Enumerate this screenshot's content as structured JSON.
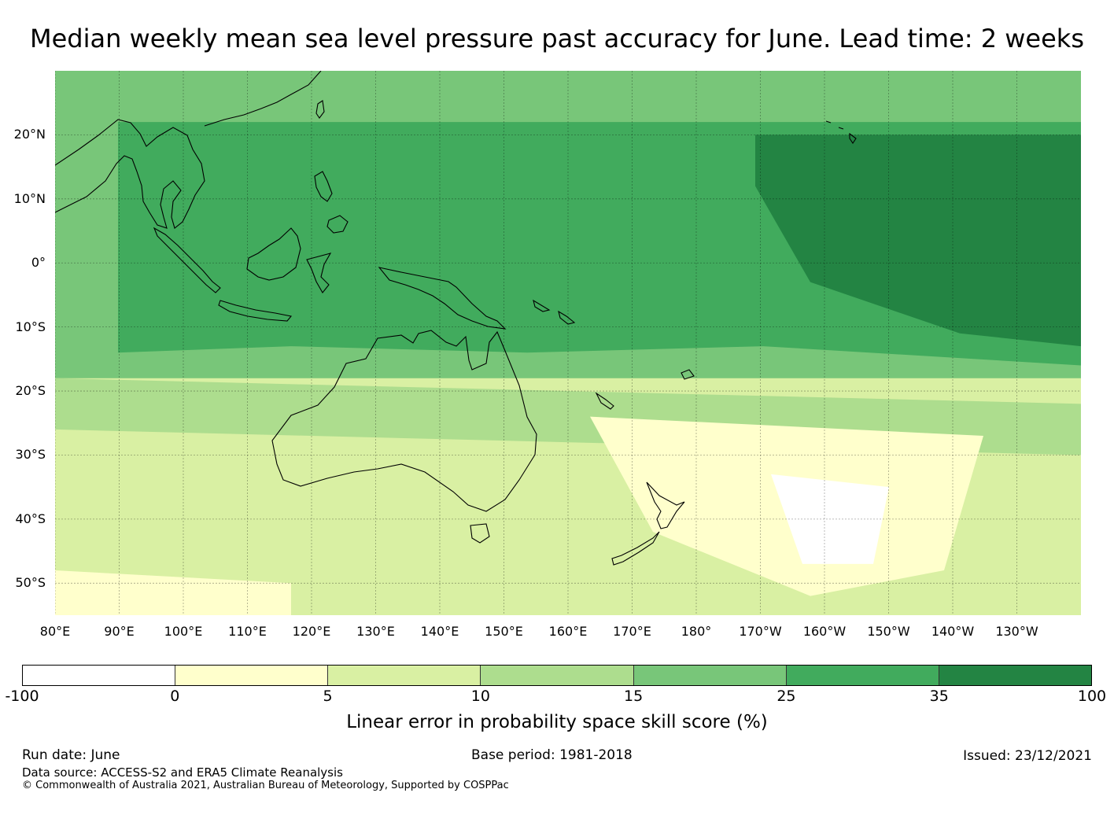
{
  "title": "Median weekly mean sea level pressure past accuracy for June. Lead time: 2 weeks",
  "map": {
    "lon_range": [
      80,
      240
    ],
    "lat_range": [
      -55,
      30
    ],
    "lat_labels": [
      "20°N",
      "10°N",
      "0°",
      "10°S",
      "20°S",
      "30°S",
      "40°S",
      "50°S"
    ],
    "lat_values": [
      20,
      10,
      0,
      -10,
      -20,
      -30,
      -40,
      -50
    ],
    "lon_labels": [
      "80°E",
      "90°E",
      "100°E",
      "110°E",
      "120°E",
      "130°E",
      "140°E",
      "150°E",
      "160°E",
      "170°E",
      "180°",
      "170°W",
      "160°W",
      "150°W",
      "140°W",
      "130°W"
    ],
    "lon_values": [
      80,
      90,
      100,
      110,
      120,
      130,
      140,
      150,
      160,
      170,
      180,
      190,
      200,
      210,
      220,
      230
    ],
    "grid": true,
    "coastline_color": "#000000"
  },
  "colorbar": {
    "ticks": [
      "-100",
      "0",
      "5",
      "10",
      "15",
      "25",
      "35",
      "100"
    ],
    "colors": [
      "#ffffff",
      "#ffffcc",
      "#d9f0a3",
      "#addd8e",
      "#78c679",
      "#41ab5d",
      "#238443"
    ],
    "label": "Linear error in probability space skill score (%)"
  },
  "footer": {
    "run_date": "Run date: June",
    "base_period": "Base period: 1981-2018",
    "issued": "Issued: 23/12/2021",
    "data_source": "Data source: ACCESS-S2 and ERA5 Climate Reanalysis",
    "copyright": "© Commonwealth of Australia 2021, Australian Bureau of Meteorology, Supported by COSPPac"
  }
}
